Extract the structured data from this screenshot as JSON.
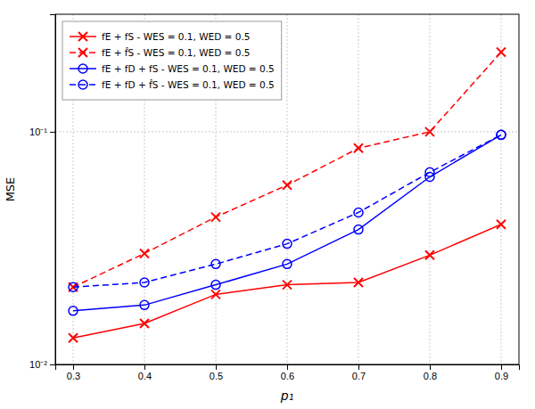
{
  "chart_data": {
    "type": "line",
    "xlabel": "p₁",
    "ylabel": "MSE",
    "log": "y",
    "x": [
      0.3,
      0.4,
      0.5,
      0.6,
      0.7,
      0.8,
      0.9
    ],
    "xlim": [
      0.275,
      0.925
    ],
    "ylim": [
      0.01,
      0.32
    ],
    "xticks": [
      0.3,
      0.4,
      0.5,
      0.6,
      0.7,
      0.8,
      0.9
    ],
    "yticks": [
      {
        "value": 0.01,
        "label": "10⁻²"
      },
      {
        "value": 0.1,
        "label": "10⁻¹"
      }
    ],
    "grid": true,
    "legend": "upper left",
    "series": [
      {
        "name": "fE + fS - WES = 0.1, WED = 0.5",
        "color": "#ff0000",
        "marker": "x",
        "line_style": "solid",
        "values": [
          0.013,
          0.015,
          0.02,
          0.022,
          0.0225,
          0.0295,
          0.04
        ]
      },
      {
        "name": "fE + f̂S - WES = 0.1, WED = 0.5",
        "color": "#ff0000",
        "marker": "x",
        "line_style": "dashed",
        "values": [
          0.0215,
          0.03,
          0.043,
          0.059,
          0.085,
          0.1,
          0.22
        ]
      },
      {
        "name": "fE + fD + fS - WES = 0.1, WED = 0.5",
        "color": "#0000ff",
        "marker": "o",
        "line_style": "solid",
        "values": [
          0.017,
          0.018,
          0.022,
          0.027,
          0.038,
          0.064,
          0.097
        ]
      },
      {
        "name": "fE + fD + f̂S - WES = 0.1, WED = 0.5",
        "color": "#0000ff",
        "marker": "o",
        "line_style": "dashed",
        "values": [
          0.0215,
          0.0225,
          0.027,
          0.033,
          0.045,
          0.067,
          0.097
        ]
      }
    ]
  }
}
